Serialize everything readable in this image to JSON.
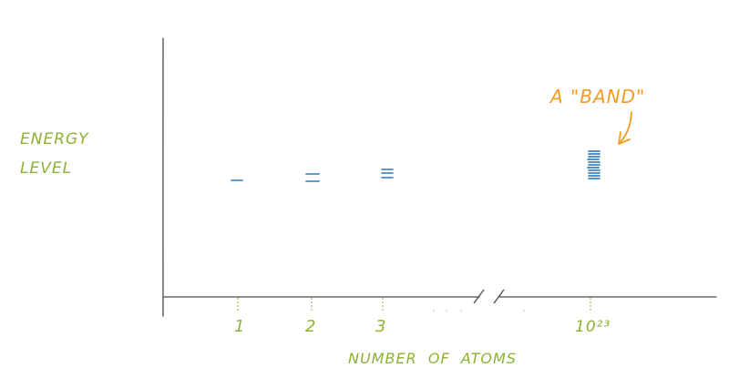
{
  "chart_data": {
    "type": "diagram",
    "ylabel_lines": [
      "ENERGY",
      "LEVEL"
    ],
    "xlabel": "NUMBER  OF  ATOMS",
    "categories": [
      "1",
      "2",
      "3",
      "10²³"
    ],
    "levels_per_category": [
      1,
      2,
      3,
      "band"
    ],
    "annotation": "A \"BAND\"",
    "axis_break": true
  },
  "colors": {
    "labels": "#8fb130",
    "levels": "#4a8bc4",
    "annotation": "#f39c1f",
    "axis": "#4a4a4a"
  }
}
